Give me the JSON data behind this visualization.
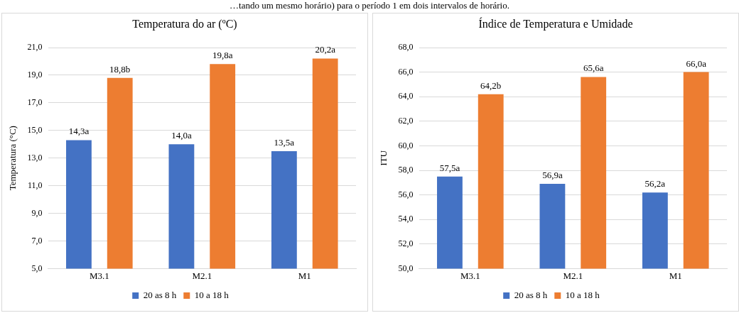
{
  "chart_data": [
    {
      "type": "bar",
      "title": "Temperatura do ar (ºC)",
      "ylabel": "Temperatura (°C)",
      "annotations": [
        "…tando um mesmo horário) para o período 1 em dois intervalos de horário."
      ],
      "categories": [
        "M3.1",
        "M2.1",
        "M1"
      ],
      "series": [
        {
          "name": "20 as 8 h",
          "color": "#4472c4",
          "values": [
            14.3,
            14.0,
            13.5
          ],
          "value_labels": [
            "14,3a",
            "14,0a",
            "13,5a"
          ]
        },
        {
          "name": "10 a 18 h",
          "color": "#ed7d31",
          "values": [
            18.8,
            19.8,
            20.2
          ],
          "value_labels": [
            "18,8b",
            "19,8a",
            "20,2a"
          ]
        }
      ],
      "ylim": [
        5,
        21
      ],
      "yticks": [
        {
          "value": 5,
          "label": "5,0"
        },
        {
          "value": 7,
          "label": "7,0"
        },
        {
          "value": 9,
          "label": "9,0"
        },
        {
          "value": 11,
          "label": "11,0"
        },
        {
          "value": 13,
          "label": "13,0"
        },
        {
          "value": 15,
          "label": "15,0"
        },
        {
          "value": 17,
          "label": "17,0"
        },
        {
          "value": 19,
          "label": "19,0"
        },
        {
          "value": 21,
          "label": "21,0"
        }
      ],
      "grid": "y",
      "legend": "bottom"
    },
    {
      "type": "bar",
      "title": "Índice de Temperatura  e Umidade",
      "ylabel": "ITU",
      "categories": [
        "M3.1",
        "M2.1",
        "M1"
      ],
      "series": [
        {
          "name": "20 as 8 h",
          "color": "#4472c4",
          "values": [
            57.5,
            56.9,
            56.2
          ],
          "value_labels": [
            "57,5a",
            "56,9a",
            "56,2a"
          ]
        },
        {
          "name": "10 a 18 h",
          "color": "#ed7d31",
          "values": [
            64.2,
            65.6,
            66.0
          ],
          "value_labels": [
            "64,2b",
            "65,6a",
            "66,0a"
          ]
        }
      ],
      "ylim": [
        50,
        68
      ],
      "yticks": [
        {
          "value": 50,
          "label": "50,0"
        },
        {
          "value": 52,
          "label": "52,0"
        },
        {
          "value": 54,
          "label": "54,0"
        },
        {
          "value": 56,
          "label": "56,0"
        },
        {
          "value": 58,
          "label": "58,0"
        },
        {
          "value": 60,
          "label": "60,0"
        },
        {
          "value": 62,
          "label": "62,0"
        },
        {
          "value": 64,
          "label": "64,0"
        },
        {
          "value": 66,
          "label": "66,0"
        },
        {
          "value": 68,
          "label": "68,0"
        }
      ],
      "grid": "y",
      "legend": "bottom"
    }
  ]
}
